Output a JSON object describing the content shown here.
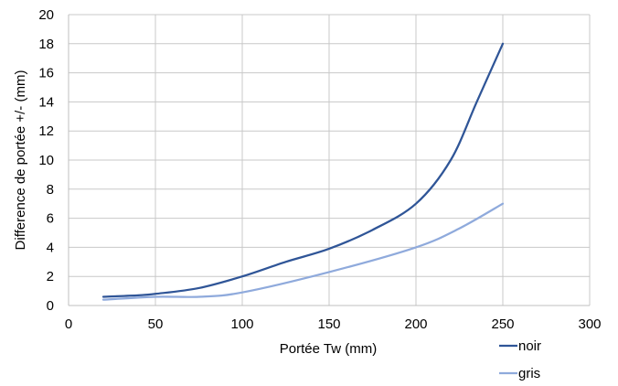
{
  "chart_data": {
    "type": "line",
    "title": "",
    "xlabel": "Portée Tw (mm)",
    "ylabel": "Difference de portée +/- (mm)",
    "xlim": [
      0,
      300
    ],
    "ylim": [
      0,
      20
    ],
    "xticks": [
      0,
      50,
      100,
      150,
      200,
      250,
      300
    ],
    "yticks": [
      0,
      2,
      4,
      6,
      8,
      10,
      12,
      14,
      16,
      18,
      20
    ],
    "grid": true,
    "legend": "bottom-right",
    "series": [
      {
        "name": "noir",
        "color": "#2f5597",
        "x": [
          20,
          40,
          50,
          75,
          100,
          125,
          150,
          175,
          200,
          220,
          235,
          250
        ],
        "y": [
          0.6,
          0.7,
          0.8,
          1.2,
          2.0,
          3.0,
          3.9,
          5.2,
          7.0,
          10.0,
          14.0,
          18.0
        ]
      },
      {
        "name": "gris",
        "color": "#8faadc",
        "x": [
          20,
          50,
          75,
          100,
          150,
          200,
          225,
          250
        ],
        "y": [
          0.4,
          0.6,
          0.6,
          0.9,
          2.3,
          4.0,
          5.3,
          7.0
        ]
      }
    ]
  }
}
